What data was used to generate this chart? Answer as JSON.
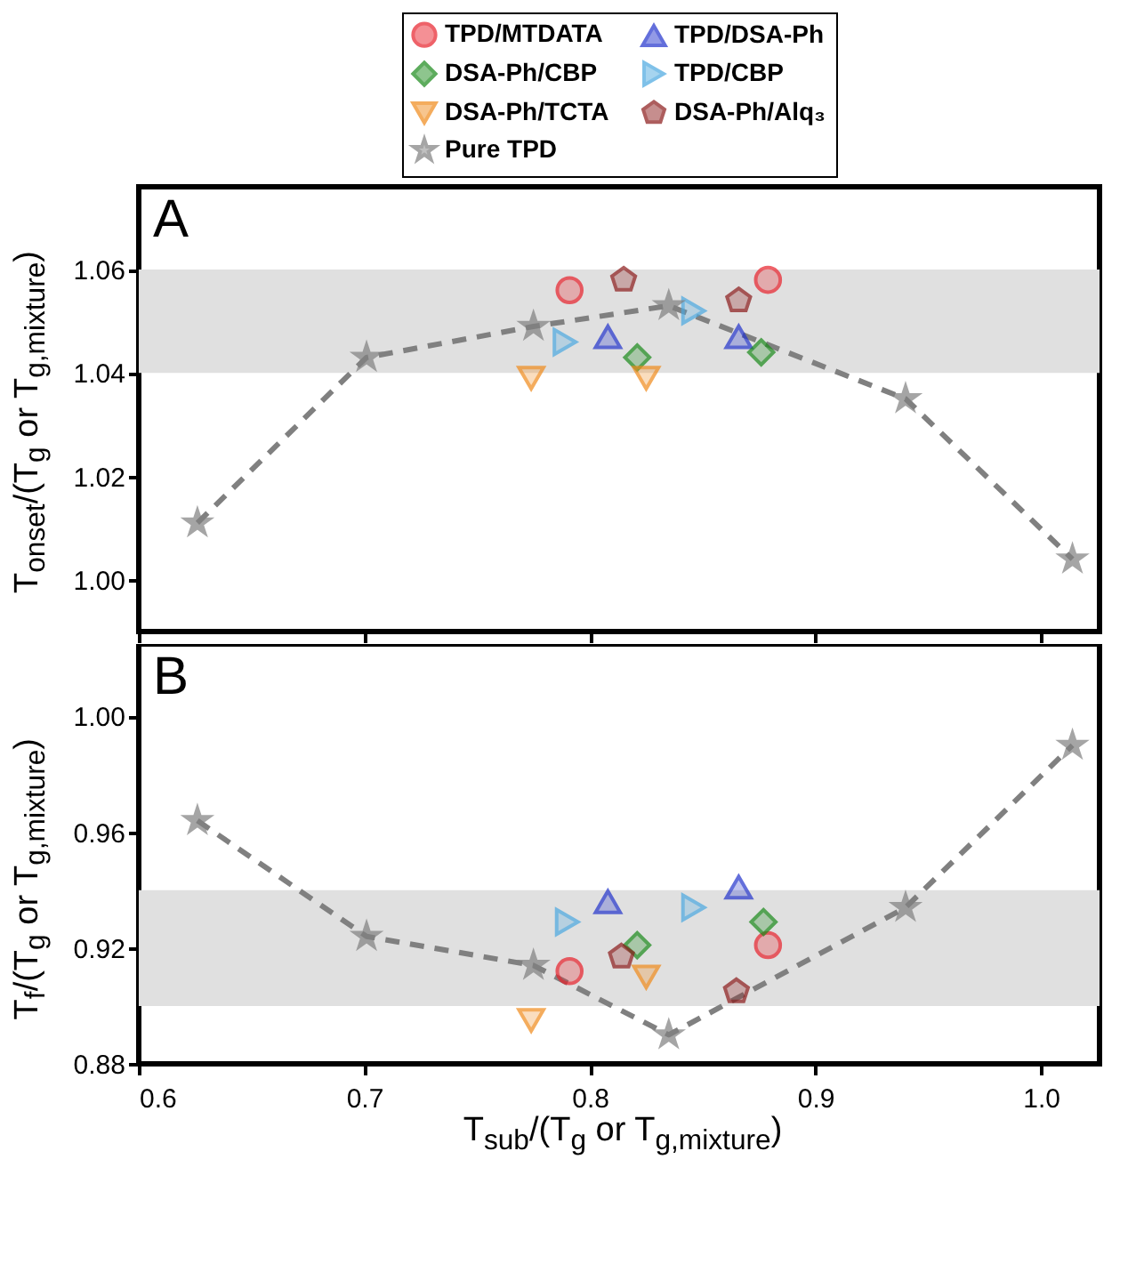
{
  "chart_data": [
    {
      "type": "scatter",
      "ylabel": "T$_{onset}$/(T$_{g}$ or T$_{g,mixture}$)",
      "annotations": [
        "A"
      ],
      "xlim": [
        0.6,
        1.026
      ],
      "xticks": [
        0.6,
        0.7,
        0.8,
        0.9,
        1
      ],
      "ylim": [
        0.99,
        1.076
      ],
      "yticks": [
        {
          "value": 1,
          "label": "1.00"
        },
        1.02,
        1.04,
        1.06
      ],
      "tick_labels": "y",
      "legend": "top",
      "bands": [
        {
          "axis": "y",
          "from": 1.04,
          "to": 1.06,
          "color": "#e0e0e0"
        }
      ],
      "series": [
        {
          "name": "TPD/MTDATA",
          "color": "#e8202a",
          "marker": "circle",
          "x": [
            0.791,
            0.879
          ],
          "values": [
            1.056,
            1.058
          ]
        },
        {
          "name": "TPD/DSA-Ph",
          "color": "#2233cc",
          "marker": "triangle",
          "x": [
            0.808,
            0.866
          ],
          "values": [
            1.047,
            1.047
          ]
        },
        {
          "name": "DSA-Ph/CBP",
          "color": "#1a8a1a",
          "marker": "diamond",
          "x": [
            0.821,
            0.876
          ],
          "values": [
            1.043,
            1.044
          ]
        },
        {
          "name": "TPD/CBP",
          "color": "#4aa8e0",
          "marker": "triangle-right",
          "x": [
            0.789,
            0.846
          ],
          "values": [
            1.046,
            1.052
          ]
        },
        {
          "name": "DSA-Ph/TCTA",
          "color": "#f08a1a",
          "marker": "triangle-down",
          "x": [
            0.774,
            0.825
          ],
          "values": [
            1.039,
            1.039
          ]
        },
        {
          "name": "DSA-Ph/Alq₃",
          "color": "#8b1a1a",
          "x": [
            0.815,
            0.866
          ],
          "values": [
            1.058,
            1.054
          ]
        },
        {
          "name": "Pure TPD",
          "type": "line",
          "color": "#808080",
          "marker": "star",
          "line_style": "dashed",
          "x": [
            0.626,
            0.701,
            0.775,
            0.835,
            0.94,
            1.014
          ],
          "values": [
            1.011,
            1.043,
            1.049,
            1.053,
            1.035,
            1.004
          ]
        }
      ]
    },
    {
      "type": "scatter",
      "ylabel": "T$_{f}$/(T$_{g}$ or T$_{g,mixture}$)",
      "xlabel": "T$_{sub}$/(T$_{g}$ or T$_{g,mixture}$)",
      "annotations": [
        "B"
      ],
      "xlim": [
        0.6,
        1.026
      ],
      "xticks": [
        0.6,
        0.7,
        0.8,
        0.9,
        {
          "value": 1,
          "label": "1.0"
        }
      ],
      "ylim": [
        0.88,
        1.025
      ],
      "yticks": [
        0.88,
        0.92,
        0.96,
        {
          "value": 1,
          "label": "1.00"
        }
      ],
      "bands": [
        {
          "axis": "y",
          "from": 0.9,
          "to": 0.94,
          "color": "#e0e0e0"
        }
      ],
      "series": [
        {
          "color": "#e8202a",
          "marker": "circle",
          "x": [
            0.791,
            0.879
          ],
          "values": [
            0.912,
            0.921
          ]
        },
        {
          "color": "#2233cc",
          "marker": "triangle",
          "x": [
            0.808,
            0.866
          ],
          "values": [
            0.936,
            0.941
          ]
        },
        {
          "color": "#1a8a1a",
          "marker": "diamond",
          "x": [
            0.821,
            0.877
          ],
          "values": [
            0.921,
            0.929
          ]
        },
        {
          "color": "#4aa8e0",
          "marker": "triangle-right",
          "x": [
            0.79,
            0.846
          ],
          "values": [
            0.929,
            0.934
          ]
        },
        {
          "color": "#f08a1a",
          "marker": "triangle-down",
          "x": [
            0.774,
            0.825
          ],
          "values": [
            0.895,
            0.91
          ]
        },
        {
          "color": "#8b1a1a",
          "x": [
            0.814,
            0.865
          ],
          "values": [
            0.917,
            0.905
          ]
        },
        {
          "type": "line",
          "color": "#808080",
          "marker": "star",
          "line_style": "dashed",
          "x": [
            0.626,
            0.701,
            0.775,
            0.835,
            0.94,
            1.014
          ],
          "values": [
            0.964,
            0.924,
            0.914,
            0.89,
            0.934,
            0.99
          ]
        }
      ]
    }
  ]
}
